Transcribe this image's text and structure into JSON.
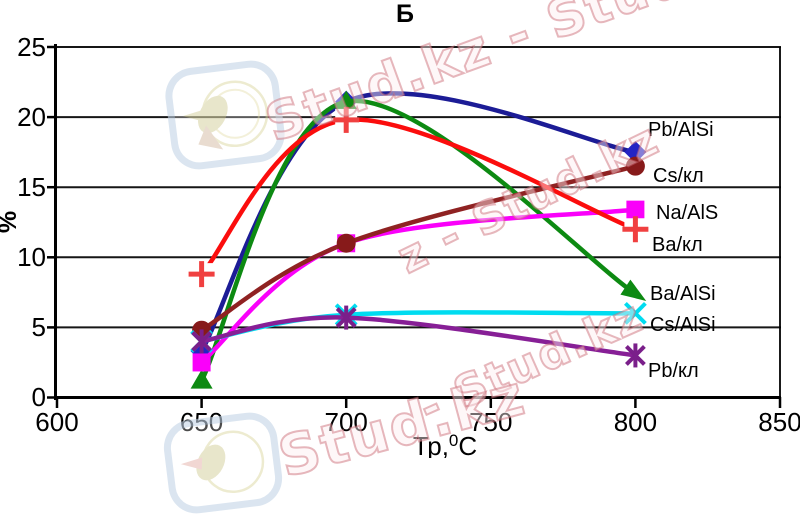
{
  "watermark": {
    "texts": [
      "Stud.kz - Stud.",
      "z - Stud.kz",
      "- Stud.kz",
      "Stud.kz"
    ],
    "logo_name": "studkz-hummingbird-logo",
    "text_color": "#ce727c"
  },
  "chart_data": {
    "type": "line",
    "title": "Б",
    "ylabel": "%",
    "xlabel_parts": [
      "Тр,",
      "0",
      "С"
    ],
    "xlim": [
      600,
      850
    ],
    "ylim": [
      0,
      25
    ],
    "x_ticks": [
      600,
      650,
      700,
      750,
      800,
      850
    ],
    "y_ticks": [
      25,
      20,
      15,
      10,
      5,
      0
    ],
    "grid": "horizontal",
    "legend_position": "inline-right-labels",
    "x": [
      650,
      700,
      800
    ],
    "series": [
      {
        "name": "Pb/AlSi",
        "color": "#1c1c96",
        "marker": "diamond",
        "marker_color": "#2424c4",
        "values": [
          3.3,
          21.1,
          17.5
        ]
      },
      {
        "name": "Cs/кл",
        "color": "#8f2222",
        "marker": "circle",
        "marker_color": "#871a1a",
        "values": [
          4.8,
          11.0,
          16.5
        ]
      },
      {
        "name": "Na/AlS",
        "color": "#fa00fa",
        "marker": "square",
        "marker_color": "#fa00fa",
        "values": [
          2.5,
          11.0,
          13.4
        ]
      },
      {
        "name": "Ва/кл",
        "color": "#fb0d0d",
        "marker": "plus",
        "marker_color": "#f04040",
        "values": [
          8.8,
          19.8,
          12.0
        ]
      },
      {
        "name": "Ba/AlSi",
        "color": "#0d8a12",
        "marker": "triangle",
        "marker_color": "#0d8a12",
        "values": [
          1.2,
          21.1,
          7.4
        ],
        "end_marker": "arrow"
      },
      {
        "name": "Cs/AlSi",
        "color": "#00dcf0",
        "marker": "x",
        "marker_color": "#00dcf0",
        "values": [
          4.0,
          5.9,
          6.0
        ]
      },
      {
        "name": "Pb/кл",
        "color": "#871f96",
        "marker": "asterisk",
        "marker_color": "#7a1f8a",
        "values": [
          4.0,
          5.7,
          3.0
        ]
      }
    ],
    "draw_order": [
      0,
      4,
      2,
      1,
      3,
      5,
      6
    ]
  }
}
